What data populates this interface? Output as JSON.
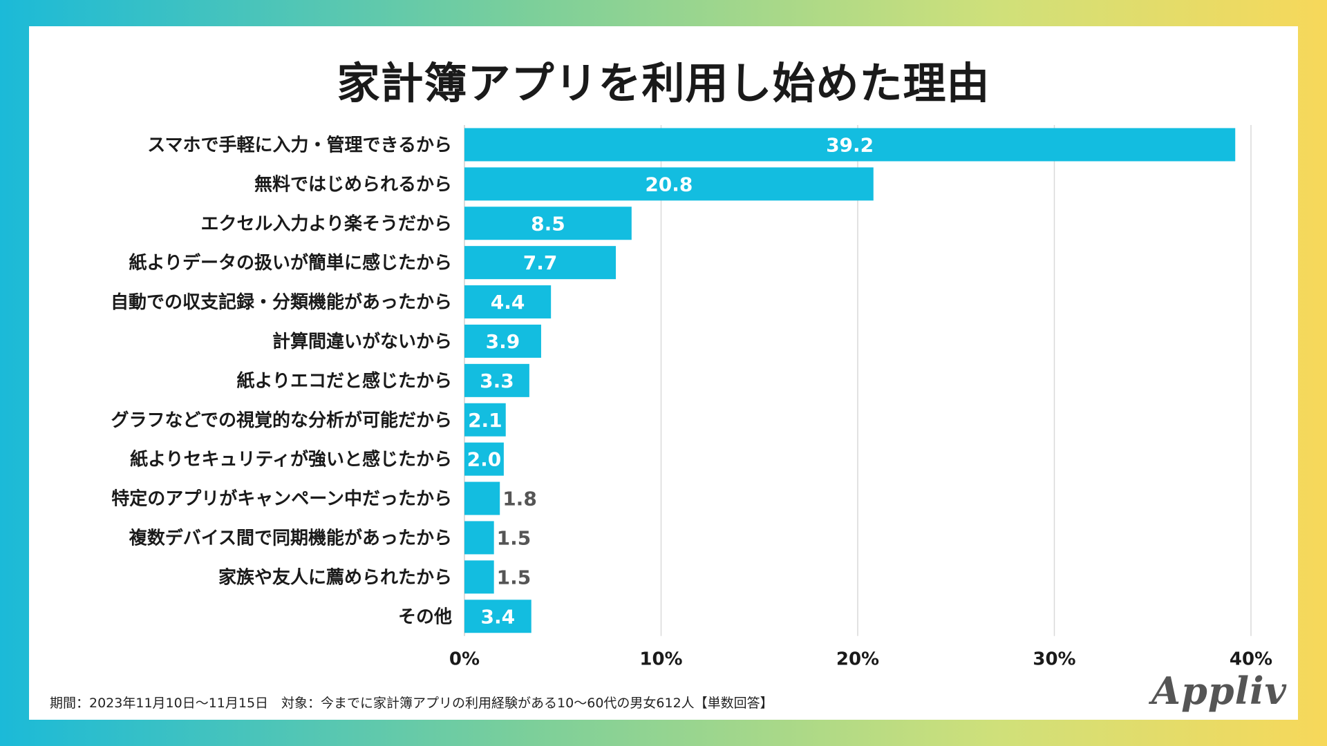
{
  "chart_data": {
    "type": "bar",
    "orientation": "horizontal",
    "title": "家計簿アプリを利用し始めた理由",
    "categories": [
      "スマホで手軽に入力・管理できるから",
      "無料ではじめられるから",
      "エクセル入力より楽そうだから",
      "紙よりデータの扱いが簡単に感じたから",
      "自動での収支記録・分類機能があったから",
      "計算間違いがないから",
      "紙よりエコだと感じたから",
      "グラフなどでの視覚的な分析が可能だから",
      "紙よりセキュリティが強いと感じたから",
      "特定のアプリがキャンペーン中だったから",
      "複数デバイス間で同期機能があったから",
      "家族や友人に薦められたから",
      "その他"
    ],
    "values": [
      39.2,
      20.8,
      8.5,
      7.7,
      4.4,
      3.9,
      3.3,
      2.1,
      2.0,
      1.8,
      1.5,
      1.5,
      3.4
    ],
    "value_labels": [
      "39.2",
      "20.8",
      "8.5",
      "7.7",
      "4.4",
      "3.9",
      "3.3",
      "2.1",
      "2.0",
      "1.8",
      "1.5",
      "1.5",
      "3.4"
    ],
    "xlim": [
      0,
      40
    ],
    "xticks": [
      0,
      10,
      20,
      30,
      40
    ],
    "xtick_labels": [
      "0%",
      "10%",
      "20%",
      "30%",
      "40%"
    ],
    "grid": true,
    "bar_color": "#13bde0",
    "inside_label_color": "#ffffff",
    "outside_label_color": "#555555"
  },
  "footnote": "期間：2023年11月10日〜11月15日　対象：今までに家計簿アプリの利用経験がある10〜60代の男女612人【単数回答】",
  "brand": "Appliv"
}
